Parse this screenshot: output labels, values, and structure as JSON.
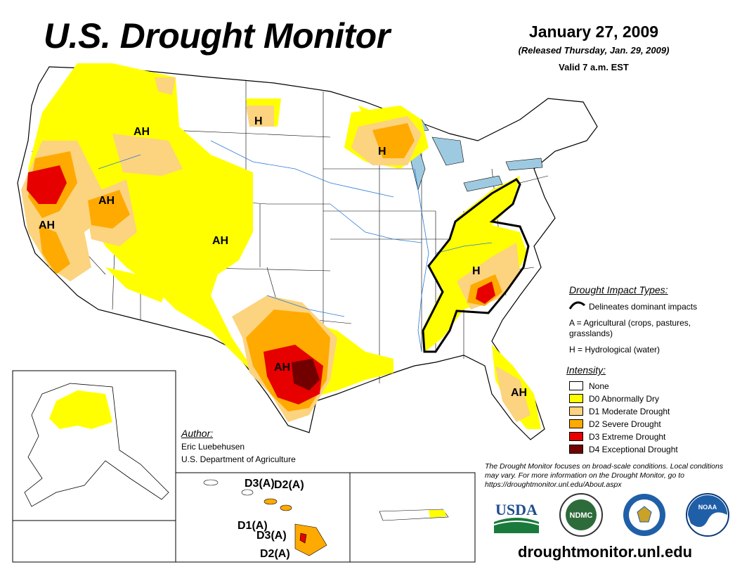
{
  "header": {
    "title": "U.S. Drought Monitor",
    "date": "January 27, 2009",
    "released": "(Released Thursday, Jan. 29, 2009)",
    "valid": "Valid 7 a.m. EST"
  },
  "colors": {
    "none": "#ffffff",
    "d0": "#ffff00",
    "d1": "#fcd37f",
    "d2": "#ffaa00",
    "d3": "#e60000",
    "d4": "#730000",
    "boundary": "#000000",
    "water": "#9ecae1"
  },
  "impacts": {
    "heading": "Drought Impact Types:",
    "delineates": "Delineates dominant impacts",
    "agricultural": "A = Agricultural (crops, pastures, grasslands)",
    "hydrological": "H = Hydrological (water)"
  },
  "intensity": {
    "heading": "Intensity:",
    "items": [
      {
        "label": "None",
        "color": "#ffffff"
      },
      {
        "label": "D0 Abnormally Dry",
        "color": "#ffff00"
      },
      {
        "label": "D1 Moderate Drought",
        "color": "#fcd37f"
      },
      {
        "label": "D2 Severe Drought",
        "color": "#ffaa00"
      },
      {
        "label": "D3 Extreme Drought",
        "color": "#e60000"
      },
      {
        "label": "D4 Exceptional Drought",
        "color": "#730000"
      }
    ]
  },
  "author": {
    "heading": "Author:",
    "name": "Eric Luebehusen",
    "org": "U.S. Department of Agriculture"
  },
  "note": "The Drought Monitor focuses on broad-scale conditions. Local conditions may vary. For more information on the Drought Monitor, go to https://droughtmonitor.unl.edu/About.aspx",
  "url": "droughtmonitor.unl.edu",
  "map_labels": {
    "ah_nw": "AH",
    "ah_ca": "AH",
    "ah_nv": "AH",
    "ah_co": "AH",
    "ah_tx": "AH",
    "ah_fl": "AH",
    "h_nd": "H",
    "h_wi": "H",
    "h_se": "H",
    "hi_d3a_top": "D3(A)",
    "hi_d2a_top": "D2(A)",
    "hi_d1a": "D1(A)",
    "hi_d3a_big": "D3(A)",
    "hi_d2a_big": "D2(A)"
  },
  "logos": [
    {
      "name": "USDA",
      "text": "USDA"
    },
    {
      "name": "NDMC",
      "text": "NDMC"
    },
    {
      "name": "Department of Commerce seal",
      "text": ""
    },
    {
      "name": "NOAA",
      "text": "NOAA"
    }
  ]
}
